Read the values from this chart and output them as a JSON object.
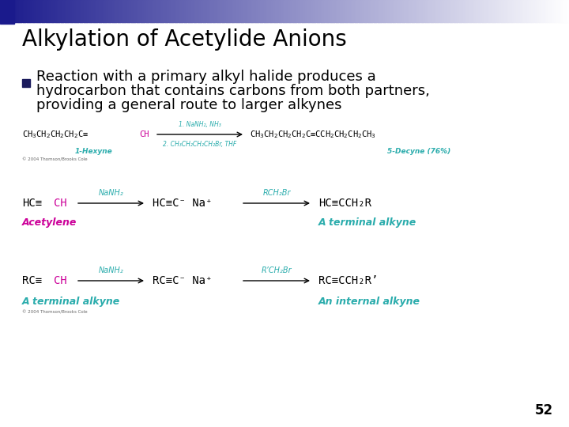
{
  "title": "Alkylation of Acetylide Anions",
  "title_fontsize": 20,
  "title_color": "#000000",
  "background_color": "#ffffff",
  "bullet_color": "#1a1a5c",
  "bullet_text_lines": [
    "Reaction with a primary alkyl halide produces a",
    "hydrocarbon that contains carbons from both partners,",
    "providing a general route to larger alkynes"
  ],
  "bullet_text_fontsize": 13,
  "page_number": "52",
  "page_number_fontsize": 12,
  "teal_color": "#2AACAC",
  "magenta_color": "#CC0099",
  "black_color": "#000000"
}
